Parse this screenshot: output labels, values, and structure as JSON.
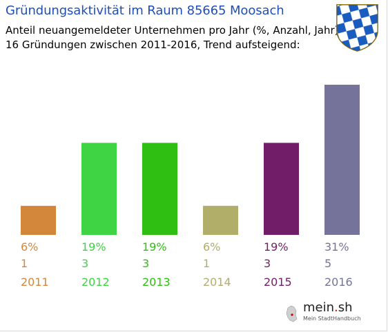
{
  "header": {
    "title": "Gründungsaktivität im Raum 85665 Moosach",
    "subtitle": "Anteil neuangemeldeter Unternehmen pro Jahr (%, Anzahl, Jahr)",
    "summary": "16 Gründungen zwischen 2011-2016, Trend aufsteigend:"
  },
  "crest": {
    "icon": "bavarian-lozenge-crest-icon",
    "colors": [
      "#1a5bbf",
      "#ffffff",
      "#c8a030"
    ]
  },
  "chart_data": {
    "type": "bar",
    "categories": [
      "2011",
      "2012",
      "2013",
      "2014",
      "2015",
      "2016"
    ],
    "values": [
      6,
      19,
      19,
      6,
      19,
      31
    ],
    "percent_labels": [
      "6%",
      "19%",
      "19%",
      "6%",
      "19%",
      "31%"
    ],
    "counts": [
      "1",
      "3",
      "3",
      "1",
      "3",
      "5"
    ],
    "colors": [
      "#d3873a",
      "#3ed444",
      "#2fbf13",
      "#b1ae6a",
      "#721d67",
      "#757399"
    ],
    "ylim": [
      0,
      31
    ],
    "grid": false,
    "legend": "none"
  },
  "branding": {
    "name_main": "mein",
    "name_dot": ".",
    "name_tld": "sh",
    "tagline": "Mein StadtHandbuch",
    "icon": "germany-map-icon"
  }
}
